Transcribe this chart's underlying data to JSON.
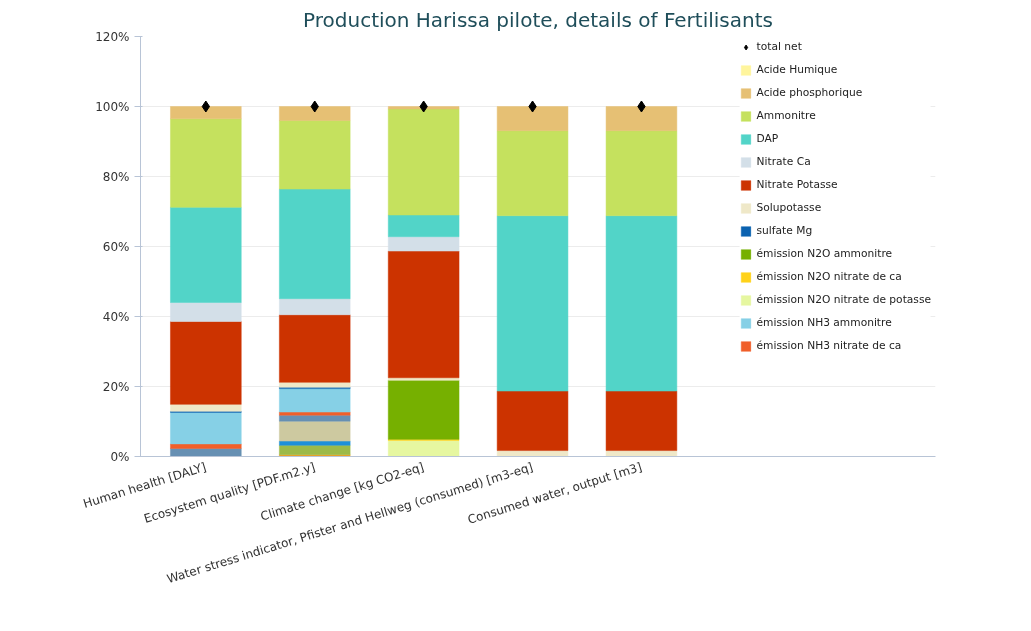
{
  "chart_data": {
    "type": "bar",
    "stacked": true,
    "title": "Production Harissa pilote, details of Fertilisants",
    "categories": [
      "Human health [DALY]",
      "Ecosystem quality [PDF.m2.y]",
      "Climate change [kg CO2-eq]",
      "Water stress indicator, Pfister and Hellweg (consumed) [m3-eq]",
      "Consumed water, output [m3]"
    ],
    "ylim": [
      0,
      120
    ],
    "yticks": [
      {
        "value": 0,
        "label": "0%"
      },
      {
        "value": 20,
        "label": "20%"
      },
      {
        "value": 40,
        "label": "40%"
      },
      {
        "value": 60,
        "label": "60%"
      },
      {
        "value": 80,
        "label": "80%"
      },
      {
        "value": 100,
        "label": "100%"
      },
      {
        "value": 120,
        "label": "120%"
      }
    ],
    "grid": "y",
    "legend": "right",
    "series": [
      {
        "color": "#f0a020",
        "values": [
          null,
          0.5,
          null,
          null,
          null
        ]
      },
      {
        "color": "#9cba48",
        "values": [
          null,
          2.7,
          null,
          null,
          null
        ]
      },
      {
        "color": "#1e90d8",
        "values": [
          null,
          1.2,
          null,
          null,
          null
        ]
      },
      {
        "color": "#cdc9a0",
        "values": [
          null,
          5.7,
          null,
          null,
          null
        ]
      },
      {
        "color": "#6790b3",
        "values": [
          2.3,
          1.7,
          null,
          null,
          null
        ]
      },
      {
        "name": "émission NH3 nitrate de ca",
        "color": "#f05f2a",
        "values": [
          1.3,
          0.9,
          null,
          null,
          null
        ]
      },
      {
        "name": "émission NH3 ammonitre",
        "color": "#86d0e6",
        "values": [
          9.0,
          6.7,
          null,
          null,
          null
        ]
      },
      {
        "name": "émission N2O nitrate de potasse",
        "color": "#e6f7a0",
        "values": [
          null,
          null,
          4.6,
          null,
          null
        ]
      },
      {
        "name": "émission N2O nitrate de ca",
        "color": "#ffd21a",
        "values": [
          null,
          null,
          0.3,
          null,
          null
        ]
      },
      {
        "name": "émission N2O ammonitre",
        "color": "#76b000",
        "values": [
          null,
          null,
          16.9,
          null,
          null
        ]
      },
      {
        "name": "sulfate Mg",
        "color": "#0b62b0",
        "values": [
          0.3,
          0.4,
          null,
          null,
          null
        ]
      },
      {
        "name": "Solupotasse",
        "color": "#efe8c8",
        "values": [
          2.0,
          1.4,
          0.7,
          1.7,
          1.7
        ]
      },
      {
        "name": "Nitrate Potasse",
        "color": "#cc3300",
        "values": [
          23.7,
          19.3,
          36.2,
          17.0,
          17.0
        ]
      },
      {
        "name": "Nitrate Ca",
        "color": "#d3dfe8",
        "values": [
          5.4,
          4.6,
          4.1,
          null,
          null
        ]
      },
      {
        "name": "DAP",
        "color": "#52d4c8",
        "values": [
          27.2,
          31.3,
          6.2,
          50.1,
          50.1
        ]
      },
      {
        "name": "Ammonitre",
        "color": "#c5e15e",
        "values": [
          25.3,
          19.6,
          30.3,
          24.3,
          24.3
        ]
      },
      {
        "name": "Acide phosphorique",
        "color": "#e6c074",
        "values": [
          3.5,
          4.0,
          0.7,
          6.9,
          6.9
        ]
      },
      {
        "name": "Acide Humique",
        "color": "#fff59d",
        "values": [
          null,
          null,
          null,
          null,
          null
        ]
      },
      {
        "name": "total net",
        "type": "scatter",
        "marker": "diamond",
        "color": "#000000",
        "values": [
          100,
          100,
          100,
          100,
          100
        ]
      }
    ]
  }
}
